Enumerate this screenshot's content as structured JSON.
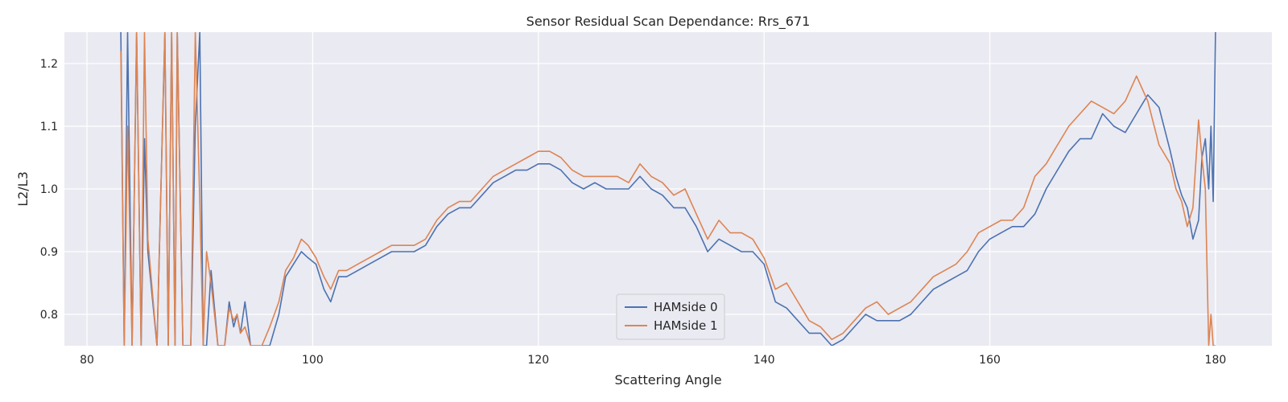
{
  "chart_data": {
    "type": "line",
    "title": "Sensor Residual Scan Dependance: Rrs_671",
    "xlabel": "Scattering Angle",
    "ylabel": "L2/L3",
    "xlim": [
      78,
      185
    ],
    "ylim": [
      0.75,
      1.25
    ],
    "xticks": [
      80,
      100,
      120,
      140,
      160,
      180
    ],
    "yticks": [
      0.8,
      0.9,
      1.0,
      1.1,
      1.2
    ],
    "grid": true,
    "legend_position": "lower-center",
    "background": "#eaeaf2",
    "series": [
      {
        "name": "HAMside 0",
        "color": "#4c72b0",
        "x": [
          83.0,
          83.3,
          83.6,
          84.0,
          84.4,
          84.8,
          85.1,
          85.4,
          86.2,
          86.9,
          87.2,
          87.5,
          87.8,
          88.0,
          88.5,
          89.2,
          89.6,
          90.0,
          90.3,
          90.6,
          91.0,
          91.6,
          92.2,
          92.6,
          93.0,
          93.3,
          93.6,
          94.0,
          94.5,
          95.0,
          95.5,
          96.2,
          97.0,
          97.6,
          98.3,
          99.0,
          99.6,
          100.3,
          101.0,
          101.6,
          102.3,
          103.0,
          104.0,
          105.0,
          106.0,
          107.0,
          108.0,
          109.0,
          110.0,
          111.0,
          112.0,
          113.0,
          114.0,
          115.0,
          116.0,
          117.0,
          118.0,
          119.0,
          120.0,
          121.0,
          122.0,
          123.0,
          124.0,
          125.0,
          126.0,
          127.0,
          128.0,
          129.0,
          130.0,
          131.0,
          132.0,
          133.0,
          134.0,
          135.0,
          136.0,
          137.0,
          138.0,
          139.0,
          140.0,
          141.0,
          142.0,
          143.0,
          144.0,
          145.0,
          146.0,
          147.0,
          148.0,
          149.0,
          150.0,
          151.0,
          152.0,
          153.0,
          154.0,
          155.0,
          156.0,
          157.0,
          158.0,
          159.0,
          160.0,
          161.0,
          162.0,
          163.0,
          164.0,
          165.0,
          166.0,
          167.0,
          168.0,
          169.0,
          170.0,
          171.0,
          172.0,
          173.0,
          174.0,
          175.0,
          176.0,
          176.5,
          177.0,
          177.5,
          178.0,
          178.5,
          178.8,
          179.1,
          179.4,
          179.6,
          179.8,
          180.0
        ],
        "values": [
          1.25,
          0.75,
          1.25,
          0.75,
          1.25,
          0.75,
          1.08,
          0.9,
          0.75,
          1.25,
          0.75,
          1.25,
          0.75,
          1.25,
          0.75,
          0.75,
          1.1,
          1.25,
          0.75,
          0.75,
          0.87,
          0.75,
          0.75,
          0.82,
          0.78,
          0.8,
          0.77,
          0.82,
          0.75,
          0.75,
          0.75,
          0.75,
          0.8,
          0.86,
          0.88,
          0.9,
          0.89,
          0.88,
          0.84,
          0.82,
          0.86,
          0.86,
          0.87,
          0.88,
          0.89,
          0.9,
          0.9,
          0.9,
          0.91,
          0.94,
          0.96,
          0.97,
          0.97,
          0.99,
          1.01,
          1.02,
          1.03,
          1.03,
          1.04,
          1.04,
          1.03,
          1.01,
          1.0,
          1.01,
          1.0,
          1.0,
          1.0,
          1.02,
          1.0,
          0.99,
          0.97,
          0.97,
          0.94,
          0.9,
          0.92,
          0.91,
          0.9,
          0.9,
          0.88,
          0.82,
          0.81,
          0.79,
          0.77,
          0.77,
          0.75,
          0.76,
          0.78,
          0.8,
          0.79,
          0.79,
          0.79,
          0.8,
          0.82,
          0.84,
          0.85,
          0.86,
          0.87,
          0.9,
          0.92,
          0.93,
          0.94,
          0.94,
          0.96,
          1.0,
          1.03,
          1.06,
          1.08,
          1.08,
          1.12,
          1.1,
          1.09,
          1.12,
          1.15,
          1.13,
          1.06,
          1.02,
          0.99,
          0.97,
          0.92,
          0.95,
          1.05,
          1.08,
          1.0,
          1.1,
          0.98,
          1.25
        ]
      },
      {
        "name": "HAMside 1",
        "color": "#dd8452",
        "x": [
          83.0,
          83.3,
          83.6,
          84.0,
          84.4,
          84.8,
          85.1,
          85.4,
          86.2,
          86.9,
          87.2,
          87.5,
          87.8,
          88.0,
          88.5,
          89.2,
          89.6,
          90.0,
          90.3,
          90.6,
          91.0,
          91.6,
          92.2,
          92.6,
          93.0,
          93.3,
          93.6,
          94.0,
          94.5,
          95.0,
          95.5,
          96.2,
          97.0,
          97.6,
          98.3,
          99.0,
          99.6,
          100.3,
          101.0,
          101.6,
          102.3,
          103.0,
          104.0,
          105.0,
          106.0,
          107.0,
          108.0,
          109.0,
          110.0,
          111.0,
          112.0,
          113.0,
          114.0,
          115.0,
          116.0,
          117.0,
          118.0,
          119.0,
          120.0,
          121.0,
          122.0,
          123.0,
          124.0,
          125.0,
          126.0,
          127.0,
          128.0,
          129.0,
          130.0,
          131.0,
          132.0,
          133.0,
          134.0,
          135.0,
          136.0,
          137.0,
          138.0,
          139.0,
          140.0,
          141.0,
          142.0,
          143.0,
          144.0,
          145.0,
          146.0,
          147.0,
          148.0,
          149.0,
          150.0,
          151.0,
          152.0,
          153.0,
          154.0,
          155.0,
          156.0,
          157.0,
          158.0,
          159.0,
          160.0,
          161.0,
          162.0,
          163.0,
          164.0,
          165.0,
          166.0,
          167.0,
          168.0,
          169.0,
          170.0,
          171.0,
          172.0,
          173.0,
          174.0,
          175.0,
          176.0,
          176.5,
          177.0,
          177.5,
          178.0,
          178.5,
          178.8,
          179.1,
          179.4,
          179.6,
          179.8,
          180.0
        ],
        "values": [
          1.22,
          0.75,
          1.1,
          0.75,
          1.25,
          0.75,
          1.25,
          0.92,
          0.75,
          1.25,
          0.75,
          1.25,
          0.75,
          1.25,
          0.75,
          0.75,
          1.25,
          0.98,
          0.75,
          0.9,
          0.85,
          0.75,
          0.75,
          0.81,
          0.79,
          0.8,
          0.77,
          0.78,
          0.75,
          0.75,
          0.75,
          0.78,
          0.82,
          0.87,
          0.89,
          0.92,
          0.91,
          0.89,
          0.86,
          0.84,
          0.87,
          0.87,
          0.88,
          0.89,
          0.9,
          0.91,
          0.91,
          0.91,
          0.92,
          0.95,
          0.97,
          0.98,
          0.98,
          1.0,
          1.02,
          1.03,
          1.04,
          1.05,
          1.06,
          1.06,
          1.05,
          1.03,
          1.02,
          1.02,
          1.02,
          1.02,
          1.01,
          1.04,
          1.02,
          1.01,
          0.99,
          1.0,
          0.96,
          0.92,
          0.95,
          0.93,
          0.93,
          0.92,
          0.89,
          0.84,
          0.85,
          0.82,
          0.79,
          0.78,
          0.76,
          0.77,
          0.79,
          0.81,
          0.82,
          0.8,
          0.81,
          0.82,
          0.84,
          0.86,
          0.87,
          0.88,
          0.9,
          0.93,
          0.94,
          0.95,
          0.95,
          0.97,
          1.02,
          1.04,
          1.07,
          1.1,
          1.12,
          1.14,
          1.13,
          1.12,
          1.14,
          1.18,
          1.14,
          1.07,
          1.04,
          1.0,
          0.98,
          0.94,
          0.97,
          1.11,
          1.05,
          1.0,
          0.75,
          0.8,
          0.75,
          0.75
        ]
      }
    ]
  }
}
